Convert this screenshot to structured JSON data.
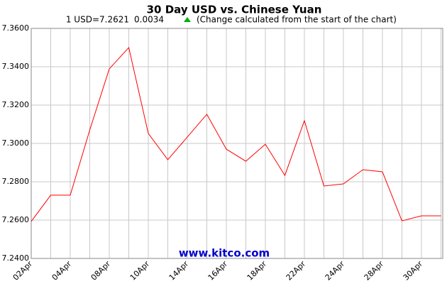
{
  "chart_data": {
    "type": "line",
    "title": "30 Day USD vs. Chinese Yuan",
    "subtitle": {
      "rate": "1 USD=7.2621",
      "change": "0.0034",
      "note": "(Change calculated from the start of the chart)"
    },
    "watermark": "www.kitco.com",
    "categories": [
      "02Apr",
      null,
      "04Apr",
      null,
      "08Apr",
      null,
      "10Apr",
      null,
      "14Apr",
      null,
      "16Apr",
      null,
      "18Apr",
      null,
      "22Apr",
      null,
      "24Apr",
      null,
      "28Apr",
      null,
      "30Apr",
      null
    ],
    "series": [
      {
        "name": "USD/CNY",
        "color": "#ff0000",
        "values": [
          7.2593,
          7.273,
          7.273,
          7.307,
          7.3389,
          7.35,
          7.3052,
          7.2915,
          7.3033,
          7.3152,
          7.297,
          7.2907,
          7.2996,
          7.2833,
          7.3119,
          7.2778,
          7.2789,
          7.2863,
          7.2852,
          7.2596,
          7.2622,
          7.2622
        ]
      }
    ],
    "ylim": [
      7.24,
      7.36
    ],
    "yticks": [
      {
        "value": 7.24,
        "label": "7.2400"
      },
      {
        "value": 7.26,
        "label": "7.2600"
      },
      {
        "value": 7.28,
        "label": "7.2800"
      },
      {
        "value": 7.3,
        "label": "7.3000"
      },
      {
        "value": 7.32,
        "label": "7.3200"
      },
      {
        "value": 7.34,
        "label": "7.3400"
      },
      {
        "value": 7.36,
        "label": "7.3600"
      }
    ],
    "grid": true
  }
}
